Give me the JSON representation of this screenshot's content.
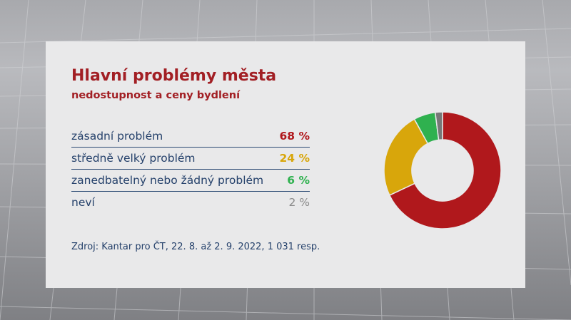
{
  "title": "Hlavní problémy města",
  "subtitle": "nedostupnost a ceny bydlení",
  "rows": [
    {
      "label": "zásadní problém",
      "value": "68 %",
      "color": "#b0181c"
    },
    {
      "label": "středně velký problém",
      "value": "24 %",
      "color": "#d8a60b"
    },
    {
      "label": "zanedbatelný nebo žádný problém",
      "value": "6 %",
      "color": "#2fb14f"
    },
    {
      "label": "neví",
      "value": "2 %",
      "color": "#8a8a8a"
    }
  ],
  "source": "Zdroj: Kantar pro ČT, 22. 8. až 2. 9. 2022, 1 031 resp.",
  "chart_data": {
    "type": "pie",
    "title": "Hlavní problémy města",
    "subtitle": "nedostupnost a ceny bydlení",
    "categories": [
      "zásadní problém",
      "středně velký problém",
      "zanedbatelný nebo žádný problém",
      "neví"
    ],
    "values": [
      68,
      24,
      6,
      2
    ],
    "colors": [
      "#b0181c",
      "#d8a60b",
      "#2fb14f",
      "#777777"
    ],
    "style": "donut"
  }
}
